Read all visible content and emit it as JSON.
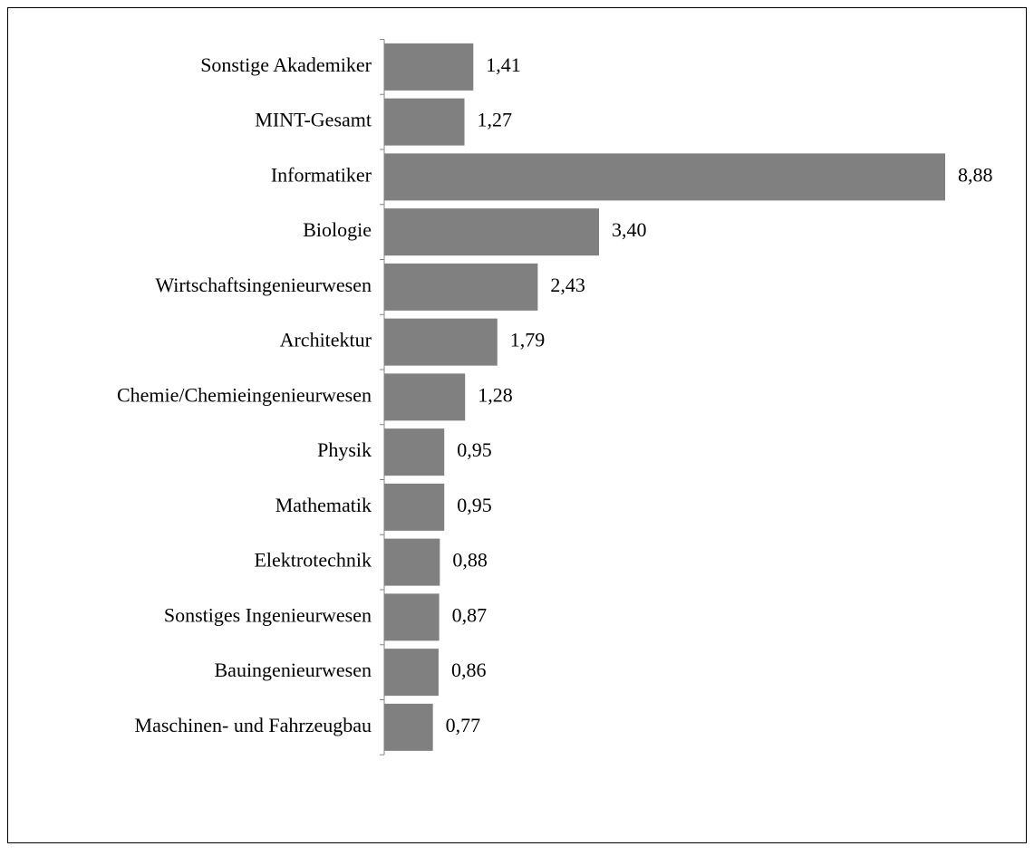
{
  "chart_data": {
    "type": "bar",
    "orientation": "horizontal",
    "categories": [
      "Sonstige Akademiker",
      "MINT-Gesamt",
      "Informatiker",
      "Biologie",
      "Wirtschaftsingenieurwesen",
      "Architektur",
      "Chemie/Chemieingenieurwesen",
      "Physik",
      "Mathematik",
      "Elektrotechnik",
      "Sonstiges Ingenieurwesen",
      "Bauingenieurwesen",
      "Maschinen- und Fahrzeugbau"
    ],
    "values": [
      1.41,
      1.27,
      8.88,
      3.4,
      2.43,
      1.79,
      1.28,
      0.95,
      0.95,
      0.88,
      0.87,
      0.86,
      0.77
    ],
    "value_labels": [
      "1,41",
      "1,27",
      "8,88",
      "3,40",
      "2,43",
      "1,79",
      "1,28",
      "0,95",
      "0,95",
      "0,88",
      "0,87",
      "0,86",
      "0,77"
    ],
    "color": "#808080"
  }
}
